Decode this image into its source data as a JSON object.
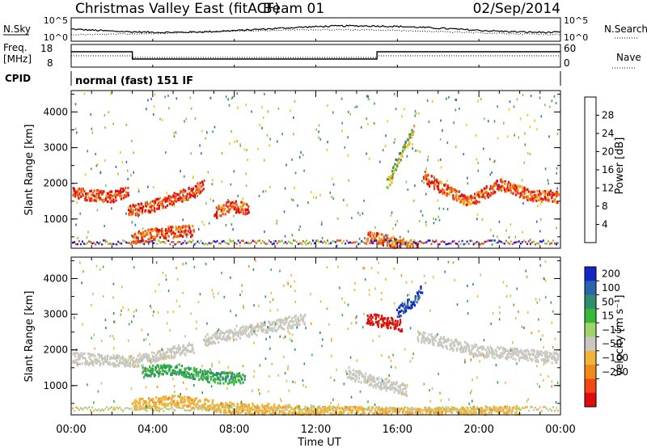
{
  "header": {
    "station": "Christmas Valley East (fitACF)",
    "beam": "Beam 01",
    "date": "02/Sep/2014"
  },
  "noise": {
    "label_left": "N.Sky",
    "label_right": "N.Search",
    "tick_top": "10^5",
    "tick_bottom": "10^0"
  },
  "freq": {
    "label_left_1": "Freq.",
    "label_left_2": "[MHz]",
    "ticks_left": [
      "18",
      "8"
    ],
    "label_right": "Nave",
    "ticks_right": [
      "60",
      "0"
    ]
  },
  "cpid": {
    "label": "CPID",
    "text": "normal (fast) 151 IF"
  },
  "x_axis": {
    "ticks": [
      "00:00",
      "04:00",
      "08:00",
      "12:00",
      "16:00",
      "20:00",
      "00:00"
    ],
    "label": "Time UT"
  },
  "y_axis": {
    "label": "Slant Range [km]",
    "ticks": [
      "1000",
      "2000",
      "3000",
      "4000"
    ]
  },
  "colorbars": {
    "power": {
      "label": "Power [dB]",
      "ticks": [
        "4",
        "8",
        "12",
        "16",
        "20",
        "24",
        "28"
      ],
      "colors": [
        "#1e10ee",
        "#2e6fb8",
        "#3f9a5c",
        "#8cc63e",
        "#f2c21a",
        "#f08a18",
        "#f04a14",
        "#e00d0d"
      ]
    },
    "velocity": {
      "label": "Velocity [m s⁻¹]",
      "ticks": [
        "200",
        "100",
        "50",
        "15",
        "−15",
        "−50",
        "−100",
        "−200"
      ],
      "colors": [
        "#1426c4",
        "#2a63b0",
        "#2f8f6c",
        "#36b83a",
        "#9fd46b",
        "#c8c8c0",
        "#f0b43c",
        "#f08a18",
        "#f04a14",
        "#e00d0d"
      ]
    }
  },
  "chart_data": [
    {
      "type": "heatmap",
      "title": "",
      "quantity": "Power [dB]",
      "x_range": [
        "00:00",
        "00:00"
      ],
      "ylim": [
        180,
        4600
      ],
      "ylabel": "Slant Range [km]",
      "xlabel": "",
      "features": [
        {
          "name": "band",
          "t": [
            0.0,
            1.0,
            2.0,
            2.8
          ],
          "r": [
            1750,
            1700,
            1650,
            1850
          ],
          "value": 28
        },
        {
          "name": "band",
          "t": [
            2.8,
            4.0,
            5.0,
            6.0,
            6.5
          ],
          "r": [
            1250,
            1400,
            1600,
            1800,
            2000
          ],
          "value": 28
        },
        {
          "name": "band",
          "t": [
            7.0,
            7.8,
            8.7
          ],
          "r": [
            1200,
            1400,
            1300
          ],
          "value": 26
        },
        {
          "name": "band",
          "t": [
            3.0,
            4.5,
            6.0
          ],
          "r": [
            500,
            650,
            700
          ],
          "value": 26
        },
        {
          "name": "band",
          "t": [
            14.5,
            16.0,
            17.0
          ],
          "r": [
            550,
            350,
            250
          ],
          "value": 24
        },
        {
          "name": "band",
          "t": [
            17.3,
            18.5,
            19.5,
            21.0,
            22.5,
            24.0
          ],
          "r": [
            2200,
            1800,
            1500,
            2000,
            1700,
            1650
          ],
          "value": 26
        },
        {
          "name": "band",
          "t": [
            15.5,
            16.2,
            16.8
          ],
          "r": [
            2000,
            2900,
            3600
          ],
          "value": 14
        }
      ]
    },
    {
      "type": "heatmap",
      "title": "",
      "quantity": "Velocity [m s⁻¹]",
      "x_range": [
        "00:00",
        "00:00"
      ],
      "ylim": [
        180,
        4600
      ],
      "ylabel": "Slant Range [km]",
      "xlabel": "Time UT",
      "features": [
        {
          "name": "ground-scatter",
          "t": [
            0.0,
            3.0,
            6.0
          ],
          "r": [
            1800,
            1700,
            2100
          ],
          "value": 0
        },
        {
          "name": "ground-scatter",
          "t": [
            6.5,
            9.0,
            11.5
          ],
          "r": [
            2300,
            2600,
            2900
          ],
          "value": 0
        },
        {
          "name": "ground-scatter",
          "t": [
            17.0,
            20.0,
            24.0
          ],
          "r": [
            2400,
            2000,
            1800
          ],
          "value": 0
        },
        {
          "name": "ground-scatter",
          "t": [
            13.5,
            15.0,
            16.5
          ],
          "r": [
            1400,
            1100,
            900
          ],
          "value": 0
        },
        {
          "name": "green",
          "t": [
            3.5,
            5.0,
            6.5,
            8.5
          ],
          "r": [
            1400,
            1500,
            1300,
            1200
          ],
          "value": 30
        },
        {
          "name": "orange",
          "t": [
            3.0,
            5.0,
            8.0,
            12.0,
            17.0,
            22.0
          ],
          "r": [
            500,
            600,
            400,
            300,
            250,
            300
          ],
          "value": -40
        },
        {
          "name": "blue",
          "t": [
            16.0,
            16.8,
            17.2
          ],
          "r": [
            3100,
            3400,
            3800
          ],
          "value": 150
        },
        {
          "name": "red",
          "t": [
            14.5,
            15.5,
            16.2
          ],
          "r": [
            2900,
            2800,
            2700
          ],
          "value": -200
        }
      ]
    }
  ]
}
